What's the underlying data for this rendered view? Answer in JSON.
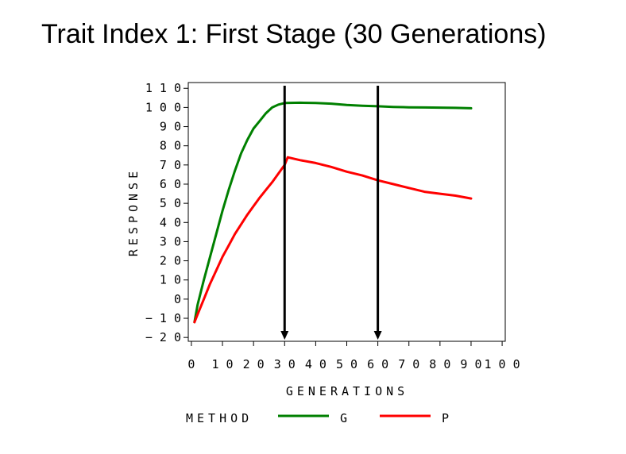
{
  "page": {
    "title": "Trait Index 1: First Stage (30 Generations)"
  },
  "chart_data": {
    "type": "line",
    "title": "Trait Index 1: First Stage (30 Generations)",
    "xlabel": "GENERATIONS",
    "ylabel": "RESPONSE",
    "xlim": [
      -1,
      101
    ],
    "ylim": [
      -22,
      113
    ],
    "x_ticks": [
      0,
      10,
      20,
      30,
      40,
      50,
      60,
      70,
      80,
      90,
      100
    ],
    "y_ticks": [
      -20,
      -10,
      0,
      10,
      20,
      30,
      40,
      50,
      60,
      70,
      80,
      90,
      100,
      110
    ],
    "legend": {
      "title": "METHOD",
      "position": "bottom"
    },
    "series": [
      {
        "name": "G",
        "color": "#008000",
        "x": [
          1,
          2,
          4,
          6,
          8,
          10,
          12,
          14,
          16,
          18,
          20,
          22,
          24,
          26,
          28,
          30,
          35,
          40,
          45,
          50,
          55,
          60,
          65,
          70,
          75,
          80,
          85,
          90
        ],
        "y": [
          -12,
          -3,
          10,
          22,
          34,
          46,
          57,
          67,
          76,
          83,
          89,
          93,
          97,
          100,
          101.5,
          102.3,
          102.5,
          102.3,
          102,
          101.3,
          100.9,
          100.6,
          100.3,
          100.1,
          100,
          99.9,
          99.8,
          99.6
        ]
      },
      {
        "name": "P",
        "color": "#ff0000",
        "x": [
          1,
          2,
          4,
          6,
          8,
          10,
          12,
          14,
          16,
          18,
          20,
          22,
          24,
          26,
          28,
          30,
          31,
          35,
          40,
          45,
          50,
          55,
          60,
          65,
          70,
          75,
          80,
          85,
          90
        ],
        "y": [
          -12,
          -8,
          0,
          8,
          15,
          22,
          28,
          34,
          39,
          44,
          48.5,
          53,
          57,
          61,
          65.5,
          70,
          74,
          72.5,
          71,
          69,
          66.5,
          64.5,
          62,
          60,
          58,
          56,
          55,
          54,
          52.5
        ]
      }
    ],
    "annotations": [
      {
        "type": "arrow",
        "x": 30,
        "direction": "down"
      },
      {
        "type": "arrow",
        "x": 60,
        "direction": "down"
      }
    ]
  }
}
